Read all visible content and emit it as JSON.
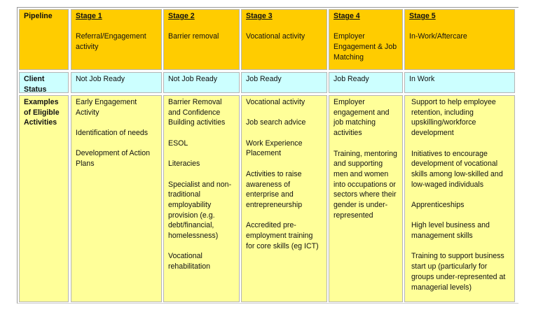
{
  "colors": {
    "header": "#FFCC00",
    "status": "#CCFFFF",
    "examples": "#FFFF99"
  },
  "row_labels": {
    "pipeline": "Pipeline",
    "client_status": "Client Status",
    "examples": "Examples of Eligible Activities"
  },
  "stages": [
    {
      "stage": "Stage 1",
      "name": "Referral/Engagement activity",
      "status": "Not Job Ready",
      "activities": [
        "Early  Engagement Activity",
        "Identification of needs",
        "Development of Action Plans"
      ]
    },
    {
      "stage": "Stage 2",
      "name": "Barrier removal",
      "status": "Not Job Ready",
      "activities": [
        "Barrier Removal and Confidence Building activities",
        "ESOL",
        "Literacies",
        "Specialist and non-traditional employability provision (e.g. debt/financial, homelessness)",
        "Vocational rehabilitation"
      ]
    },
    {
      "stage": "Stage 3",
      "name": "Vocational activity",
      "status": "Job Ready",
      "activities": [
        "Vocational activity",
        "Job search advice",
        "Work Experience Placement",
        "Activities to raise awareness of enterprise and entrepreneurship",
        "Accredited pre-employment training for core skills (eg ICT)"
      ]
    },
    {
      "stage": "Stage 4",
      "name": "Employer Engagement & Job Matching",
      "status": "Job Ready",
      "activities": [
        "Employer engagement and job matching activities",
        "Training, mentoring and supporting men and women into occupations or sectors where their gender is under-represented"
      ]
    },
    {
      "stage": "Stage 5",
      "name": "In-Work/Aftercare",
      "status": "In Work",
      "activities": [
        "Support to help employee retention, including upskilling/workforce development",
        "Initiatives to encourage development of vocational skills among low-skilled and low-waged individuals",
        "Apprenticeships",
        "High level business and management skills",
        "Training to support business start up (particularly for groups under-represented at managerial levels)"
      ]
    }
  ]
}
